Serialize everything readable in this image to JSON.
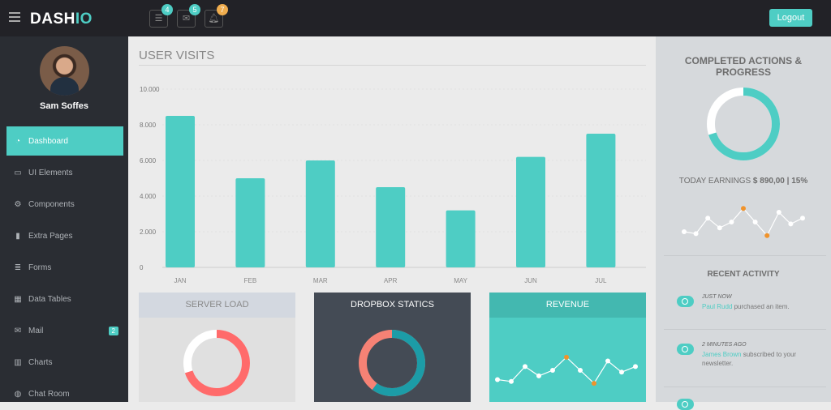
{
  "header": {
    "brand_a": "DASH",
    "brand_b": "IO",
    "notifications": [
      {
        "icon": "tasks-icon",
        "count": "4",
        "color": "#4ecdc4"
      },
      {
        "icon": "envelope-icon",
        "count": "5",
        "color": "#4ecdc4"
      },
      {
        "icon": "bell-icon",
        "count": "7",
        "color": "#f0ad4e"
      }
    ],
    "logout": "Logout"
  },
  "sidebar": {
    "user": "Sam Soffes",
    "items": [
      {
        "label": "Dashboard",
        "icon": "dashboard-icon",
        "active": true
      },
      {
        "label": "UI Elements",
        "icon": "desktop-icon"
      },
      {
        "label": "Components",
        "icon": "cogs-icon"
      },
      {
        "label": "Extra Pages",
        "icon": "book-icon"
      },
      {
        "label": "Forms",
        "icon": "forms-icon"
      },
      {
        "label": "Data Tables",
        "icon": "table-icon"
      },
      {
        "label": "Mail",
        "icon": "envelope-icon",
        "badge": "2"
      },
      {
        "label": "Charts",
        "icon": "bar-chart-icon"
      },
      {
        "label": "Chat Room",
        "icon": "comments-icon"
      }
    ]
  },
  "main": {
    "title": "USER VISITS"
  },
  "chart_data": {
    "type": "bar",
    "categories": [
      "JAN",
      "FEB",
      "MAR",
      "APR",
      "MAY",
      "JUN",
      "JUL"
    ],
    "values": [
      8500,
      5000,
      6000,
      4500,
      3200,
      6200,
      7500
    ],
    "ylim": [
      0,
      10000
    ],
    "yticks": [
      "0",
      "2.000",
      "4.000",
      "6.000",
      "8.000",
      "10.000"
    ],
    "color": "#4ecdc4",
    "grid": true
  },
  "panels": {
    "server_load": {
      "title": "SERVER LOAD",
      "percent": 70,
      "color": "#ff6b6b"
    },
    "dropbox": {
      "title": "DROPBOX STATICS",
      "percent": 60,
      "colors": [
        "#1c9ca7",
        "#f68275"
      ]
    },
    "revenue": {
      "title": "REVENUE",
      "sparkline": [
        5,
        4,
        12,
        7,
        10,
        17,
        10,
        3,
        15,
        9,
        12
      ],
      "highlight": [
        5,
        7
      ]
    }
  },
  "right": {
    "title": "COMPLETED ACTIONS & PROGRESS",
    "progress": 70,
    "earnings_label": "TODAY EARNINGS",
    "earnings_value": "$ 890,00 | 15%",
    "sparkline": [
      5,
      4,
      12,
      7,
      10,
      17,
      10,
      3,
      15,
      9,
      12
    ],
    "recent_title": "RECENT ACTIVITY",
    "activities": [
      {
        "time": "JUST NOW",
        "who": "Paul Rudd",
        "text": " purchased an item."
      },
      {
        "time": "2 MINUTES AGO",
        "who": "James Brown",
        "text": " subscribed to your newsletter."
      }
    ]
  }
}
